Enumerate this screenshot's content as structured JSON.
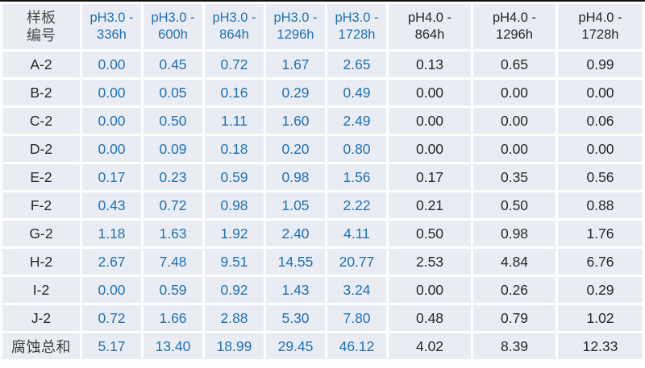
{
  "colors": {
    "cell_background": "#e9edf3",
    "grid_white": "#ffffff",
    "ph3_blue": "#1f6fb5",
    "ph4_black": "#262626",
    "corner_text_gray": "#4a4a4a",
    "top_rule_black": "#101010"
  },
  "table": {
    "corner_label": "样板\n编号",
    "columns": [
      {
        "label": "pH3.0 -\n336h",
        "group": "ph3"
      },
      {
        "label": "pH3.0 -\n600h",
        "group": "ph3"
      },
      {
        "label": "pH3.0 -\n864h",
        "group": "ph3"
      },
      {
        "label": "pH3.0 -\n1296h",
        "group": "ph3"
      },
      {
        "label": "pH3.0 -\n1728h",
        "group": "ph3"
      },
      {
        "label": "pH4.0 -\n864h",
        "group": "ph4"
      },
      {
        "label": "pH4.0 -\n1296h",
        "group": "ph4"
      },
      {
        "label": "pH4.0 -\n1728h",
        "group": "ph4"
      }
    ],
    "rows": [
      {
        "label": "A-2",
        "total": false,
        "values": [
          "0.00",
          "0.45",
          "0.72",
          "1.67",
          "2.65",
          "0.13",
          "0.65",
          "0.99"
        ]
      },
      {
        "label": "B-2",
        "total": false,
        "values": [
          "0.00",
          "0.05",
          "0.16",
          "0.29",
          "0.49",
          "0.00",
          "0.00",
          "0.00"
        ]
      },
      {
        "label": "C-2",
        "total": false,
        "values": [
          "0.00",
          "0.50",
          "1.11",
          "1.60",
          "2.49",
          "0.00",
          "0.00",
          "0.06"
        ]
      },
      {
        "label": "D-2",
        "total": false,
        "values": [
          "0.00",
          "0.09",
          "0.18",
          "0.20",
          "0.80",
          "0.00",
          "0.00",
          "0.00"
        ]
      },
      {
        "label": "E-2",
        "total": false,
        "values": [
          "0.17",
          "0.23",
          "0.59",
          "0.98",
          "1.56",
          "0.17",
          "0.35",
          "0.56"
        ]
      },
      {
        "label": "F-2",
        "total": false,
        "values": [
          "0.43",
          "0.72",
          "0.98",
          "1.05",
          "2.22",
          "0.21",
          "0.50",
          "0.88"
        ]
      },
      {
        "label": "G-2",
        "total": false,
        "values": [
          "1.18",
          "1.63",
          "1.92",
          "2.40",
          "4.11",
          "0.50",
          "0.98",
          "1.76"
        ]
      },
      {
        "label": "H-2",
        "total": false,
        "values": [
          "2.67",
          "7.48",
          "9.51",
          "14.55",
          "20.77",
          "2.53",
          "4.84",
          "6.76"
        ]
      },
      {
        "label": "I-2",
        "total": false,
        "values": [
          "0.00",
          "0.59",
          "0.92",
          "1.43",
          "3.24",
          "0.00",
          "0.26",
          "0.29"
        ]
      },
      {
        "label": "J-2",
        "total": false,
        "values": [
          "0.72",
          "1.66",
          "2.88",
          "5.30",
          "7.80",
          "0.48",
          "0.79",
          "1.02"
        ]
      },
      {
        "label": "腐蚀总和",
        "total": true,
        "values": [
          "5.17",
          "13.40",
          "18.99",
          "29.45",
          "46.12",
          "4.02",
          "8.39",
          "12.33"
        ]
      }
    ]
  },
  "chart_data": {
    "type": "table",
    "title": "",
    "row_header": "样板编号",
    "columns": [
      "pH3.0 - 336h",
      "pH3.0 - 600h",
      "pH3.0 - 864h",
      "pH3.0 - 1296h",
      "pH3.0 - 1728h",
      "pH4.0 - 864h",
      "pH4.0 - 1296h",
      "pH4.0 - 1728h"
    ],
    "rows": [
      {
        "name": "A-2",
        "values": [
          0.0,
          0.45,
          0.72,
          1.67,
          2.65,
          0.13,
          0.65,
          0.99
        ]
      },
      {
        "name": "B-2",
        "values": [
          0.0,
          0.05,
          0.16,
          0.29,
          0.49,
          0.0,
          0.0,
          0.0
        ]
      },
      {
        "name": "C-2",
        "values": [
          0.0,
          0.5,
          1.11,
          1.6,
          2.49,
          0.0,
          0.0,
          0.06
        ]
      },
      {
        "name": "D-2",
        "values": [
          0.0,
          0.09,
          0.18,
          0.2,
          0.8,
          0.0,
          0.0,
          0.0
        ]
      },
      {
        "name": "E-2",
        "values": [
          0.17,
          0.23,
          0.59,
          0.98,
          1.56,
          0.17,
          0.35,
          0.56
        ]
      },
      {
        "name": "F-2",
        "values": [
          0.43,
          0.72,
          0.98,
          1.05,
          2.22,
          0.21,
          0.5,
          0.88
        ]
      },
      {
        "name": "G-2",
        "values": [
          1.18,
          1.63,
          1.92,
          2.4,
          4.11,
          0.5,
          0.98,
          1.76
        ]
      },
      {
        "name": "H-2",
        "values": [
          2.67,
          7.48,
          9.51,
          14.55,
          20.77,
          2.53,
          4.84,
          6.76
        ]
      },
      {
        "name": "I-2",
        "values": [
          0.0,
          0.59,
          0.92,
          1.43,
          3.24,
          0.0,
          0.26,
          0.29
        ]
      },
      {
        "name": "J-2",
        "values": [
          0.72,
          1.66,
          2.88,
          5.3,
          7.8,
          0.48,
          0.79,
          1.02
        ]
      },
      {
        "name": "腐蚀总和",
        "values": [
          5.17,
          13.4,
          18.99,
          29.45,
          46.12,
          4.02,
          8.39,
          12.33
        ]
      }
    ]
  }
}
